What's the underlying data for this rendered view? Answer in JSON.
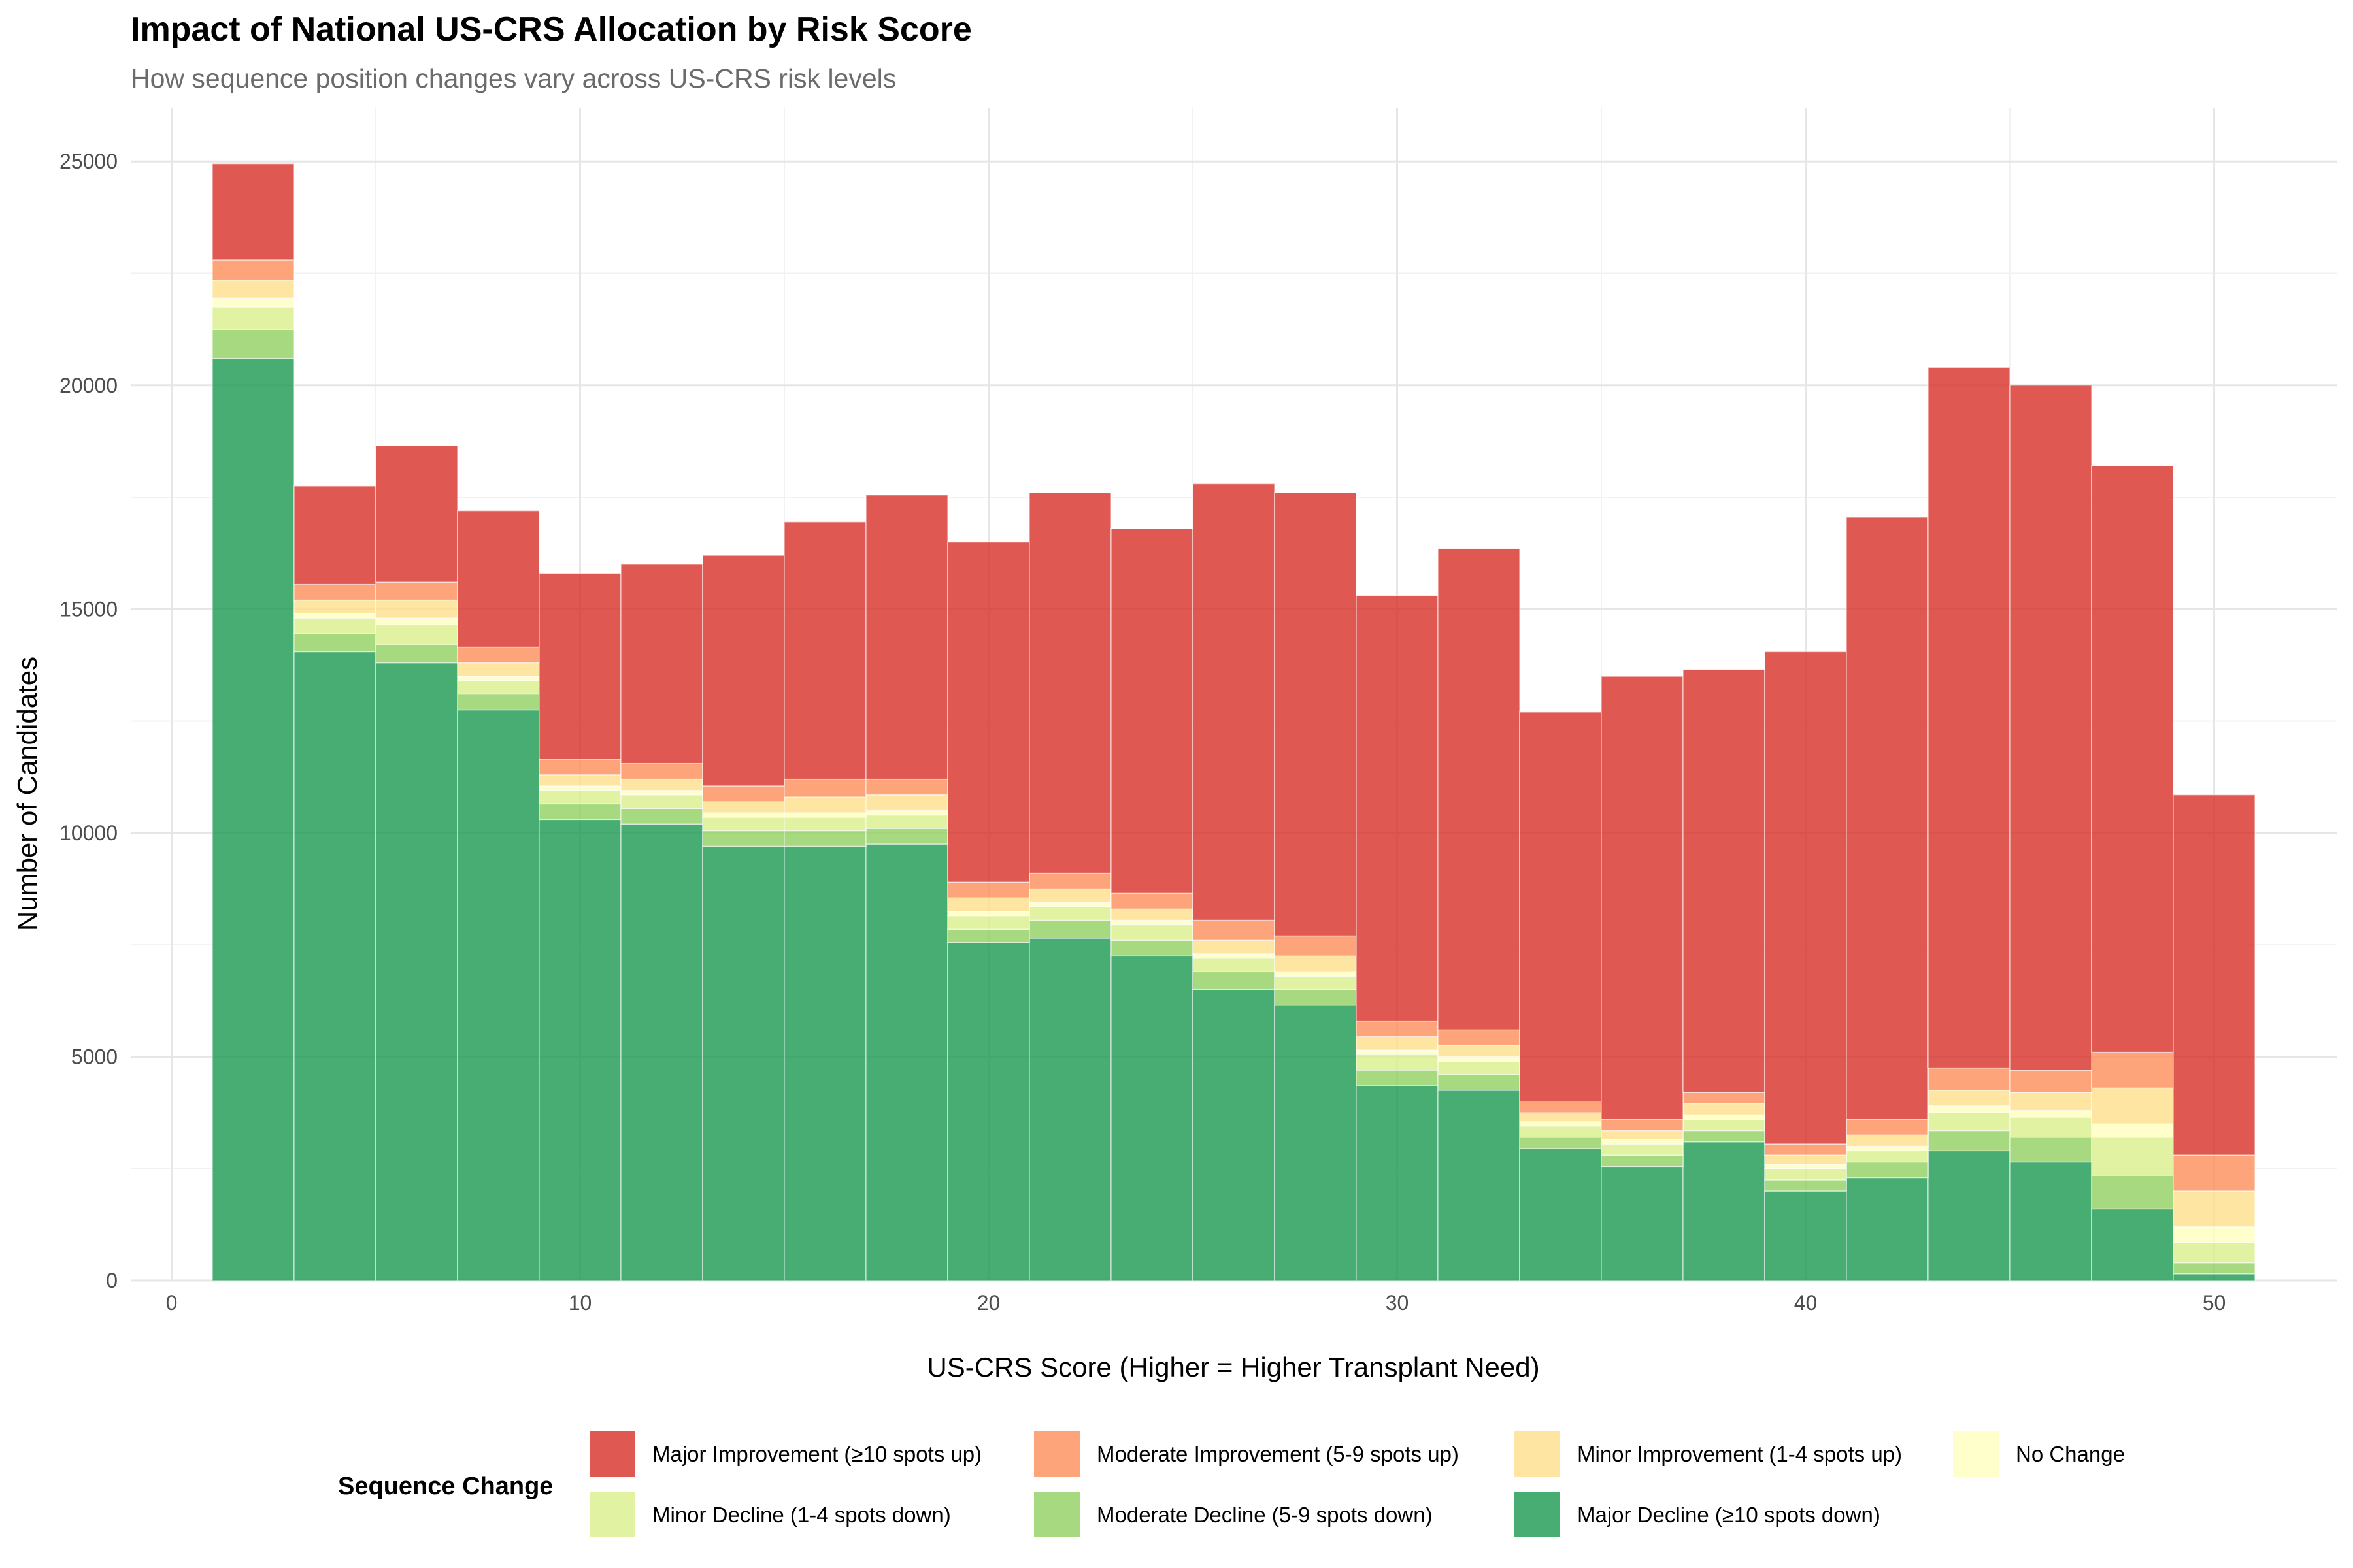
{
  "chart_data": {
    "type": "bar",
    "stacked": true,
    "title": "Impact of National US-CRS Allocation by Risk Score",
    "subtitle": "How sequence position changes vary across US-CRS risk levels",
    "xlabel": "US-CRS Score (Higher = Higher Transplant Need)",
    "ylabel": "Number of Candidates",
    "xlim": [
      -1,
      53
    ],
    "ylim": [
      0,
      26200
    ],
    "x_ticks": [
      0,
      10,
      20,
      30,
      40,
      50
    ],
    "x_tick_labels": [
      "0",
      "10",
      "20",
      "30",
      "40",
      "50"
    ],
    "y_ticks": [
      0,
      5000,
      10000,
      15000,
      20000,
      25000
    ],
    "y_tick_labels": [
      "0",
      "5000",
      "10000",
      "15000",
      "20000",
      "25000"
    ],
    "grid": true,
    "bin_width": 2,
    "x": [
      2,
      4,
      6,
      8,
      10,
      12,
      14,
      16,
      18,
      20,
      22,
      24,
      26,
      28,
      30,
      32,
      34,
      36,
      38,
      40,
      42,
      44,
      46,
      48,
      50
    ],
    "legend": {
      "title": "Sequence Change",
      "position": "bottom"
    },
    "series": [
      {
        "name": "Major Decline (≥10 spots down)",
        "color": "#1a9850",
        "values": [
          20600,
          14050,
          13800,
          12750,
          10300,
          10200,
          9700,
          9700,
          9750,
          7550,
          7650,
          7250,
          6500,
          6150,
          4350,
          4250,
          2950,
          2550,
          3100,
          2000,
          2300,
          2900,
          2650,
          1600,
          150
        ]
      },
      {
        "name": "Moderate Decline (5-9 spots down)",
        "color": "#91cf60",
        "values": [
          650,
          400,
          400,
          350,
          350,
          350,
          350,
          350,
          350,
          300,
          400,
          350,
          400,
          350,
          350,
          350,
          250,
          250,
          250,
          250,
          350,
          450,
          550,
          750,
          250
        ]
      },
      {
        "name": "Minor Decline (1-4 spots down)",
        "color": "#d9ef8b",
        "values": [
          500,
          350,
          450,
          300,
          300,
          300,
          300,
          300,
          300,
          300,
          300,
          350,
          300,
          300,
          350,
          300,
          250,
          250,
          250,
          250,
          250,
          400,
          450,
          850,
          450
        ]
      },
      {
        "name": "No Change",
        "color": "#ffffbf",
        "values": [
          200,
          100,
          150,
          100,
          100,
          100,
          100,
          100,
          100,
          100,
          100,
          100,
          100,
          100,
          100,
          100,
          100,
          100,
          100,
          100,
          100,
          150,
          150,
          300,
          350
        ]
      },
      {
        "name": "Minor Improvement (1-4 spots up)",
        "color": "#fee08b",
        "values": [
          400,
          300,
          400,
          300,
          250,
          250,
          250,
          350,
          350,
          300,
          300,
          250,
          300,
          350,
          300,
          250,
          200,
          200,
          250,
          200,
          250,
          350,
          400,
          800,
          800
        ]
      },
      {
        "name": "Moderate Improvement (5-9 spots up)",
        "color": "#fc8d59",
        "values": [
          450,
          350,
          400,
          350,
          350,
          350,
          350,
          400,
          350,
          350,
          350,
          350,
          450,
          450,
          350,
          350,
          250,
          250,
          250,
          250,
          350,
          500,
          500,
          800,
          800
        ]
      },
      {
        "name": "Major Improvement (≥10 spots up)",
        "color": "#d73027",
        "values": [
          2150,
          2200,
          3050,
          3050,
          4150,
          4450,
          5150,
          5750,
          6350,
          7600,
          8500,
          8150,
          9750,
          9900,
          9500,
          10750,
          8700,
          9900,
          9450,
          11000,
          13450,
          15650,
          15300,
          13100,
          8050
        ]
      }
    ]
  },
  "legend_order": [
    "Major Improvement (≥10 spots up)",
    "Moderate Improvement (5-9 spots up)",
    "Minor Improvement (1-4 spots up)",
    "No Change",
    "Minor Decline (1-4 spots down)",
    "Moderate Decline (5-9 spots down)",
    "Major Decline (≥10 spots down)"
  ]
}
